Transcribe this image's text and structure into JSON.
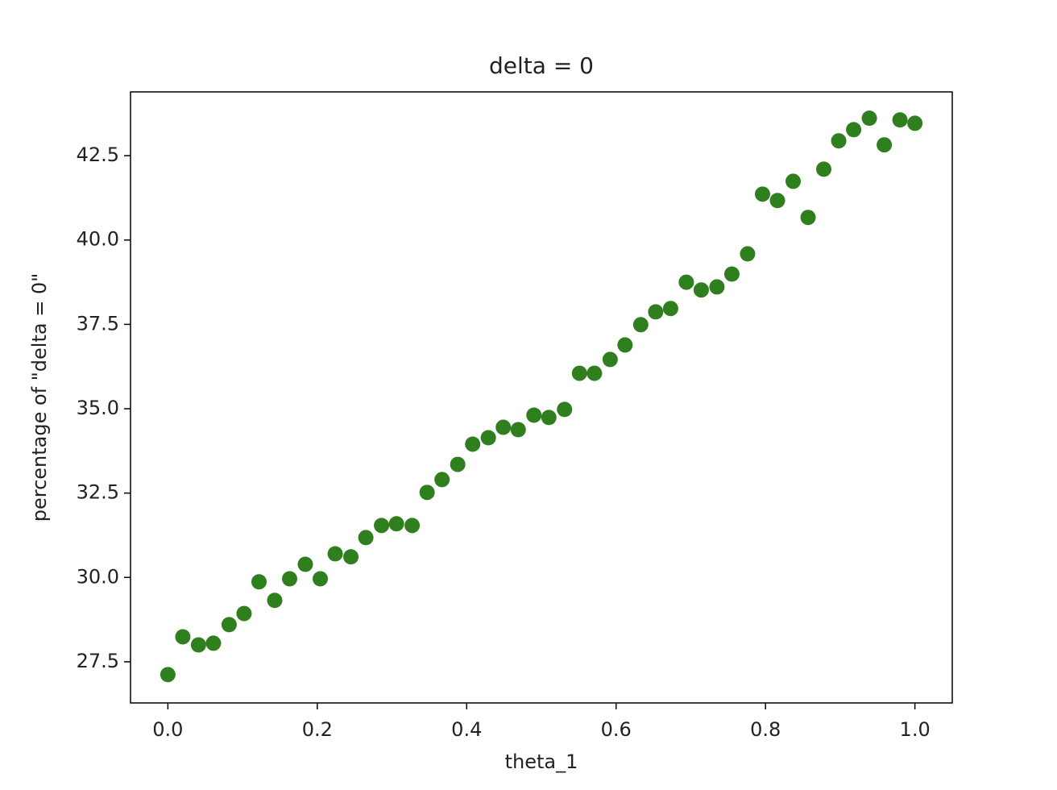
{
  "chart_data": {
    "type": "scatter",
    "title": "delta = 0",
    "xlabel": "theta_1",
    "ylabel": "percentage of \"delta = 0\"",
    "color": "#2f7f1f",
    "x": [
      0,
      0.02,
      0.041,
      0.061,
      0.082,
      0.102,
      0.122,
      0.143,
      0.163,
      0.184,
      0.204,
      0.224,
      0.245,
      0.265,
      0.286,
      0.306,
      0.327,
      0.347,
      0.367,
      0.388,
      0.408,
      0.429,
      0.449,
      0.469,
      0.49,
      0.51,
      0.531,
      0.551,
      0.571,
      0.592,
      0.612,
      0.633,
      0.653,
      0.673,
      0.694,
      0.714,
      0.735,
      0.755,
      0.776,
      0.796,
      0.816,
      0.837,
      0.857,
      0.878,
      0.898,
      0.918,
      0.939,
      0.959,
      0.98,
      1
    ],
    "values": [
      27.12,
      28.24,
      28.0,
      28.05,
      28.6,
      28.93,
      29.87,
      29.32,
      29.96,
      30.39,
      29.96,
      30.7,
      30.61,
      31.18,
      31.54,
      31.59,
      31.54,
      32.52,
      32.9,
      33.35,
      33.95,
      34.14,
      34.45,
      34.38,
      34.81,
      34.74,
      34.98,
      36.05,
      36.05,
      36.46,
      36.89,
      37.49,
      37.87,
      37.97,
      38.75,
      38.52,
      38.61,
      38.99,
      39.59,
      41.36,
      41.17,
      41.74,
      40.67,
      42.1,
      42.94,
      43.27,
      43.61,
      42.82,
      43.56,
      43.46
    ],
    "xlim": [
      -0.05,
      1.05
    ],
    "xticks": [
      {
        "value": 0,
        "label": "0.0"
      },
      0.2,
      0.4,
      0.6,
      0.8,
      {
        "value": 1,
        "label": "1.0"
      }
    ],
    "ylim": [
      26.28,
      44.39
    ],
    "yticks": [
      27.5,
      {
        "value": 30,
        "label": "30.0"
      },
      32.5,
      {
        "value": 35,
        "label": "35.0"
      },
      37.5,
      {
        "value": 40,
        "label": "40.0"
      },
      42.5
    ]
  }
}
